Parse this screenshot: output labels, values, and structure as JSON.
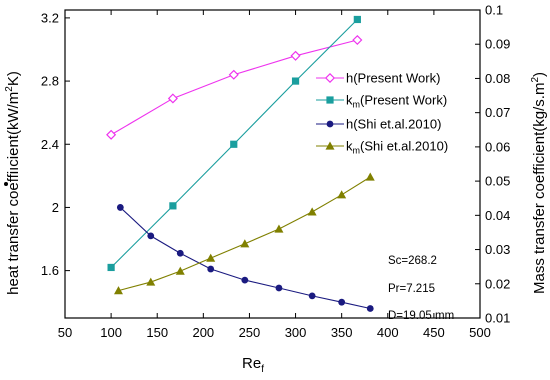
{
  "chart_data": {
    "type": "line",
    "x_axis": {
      "label_main": "Re",
      "label_sub": "f",
      "lim": [
        50,
        500
      ],
      "ticks": [
        50,
        100,
        150,
        200,
        250,
        300,
        350,
        400,
        450,
        500
      ]
    },
    "y_left": {
      "label_prefix": "heat transfer coeffi",
      "label_dotless_i": "ı",
      "label_suffix": "cient(kW/m",
      "label_sup": "2",
      "label_end": "K)",
      "lim": [
        1.3,
        3.25
      ],
      "ticks": [
        1.6,
        2,
        2.4,
        2.8,
        3.2
      ],
      "tick_labels": [
        "1.6",
        "2",
        "2.4",
        "2.8",
        "3.2"
      ]
    },
    "y_right": {
      "label_prefix": "Mass transfer coefficient(kg/s.m",
      "label_sup": "2",
      "label_end": ")",
      "lim": [
        0.01,
        0.1
      ],
      "ticks": [
        0.01,
        0.02,
        0.03,
        0.04,
        0.05,
        0.06,
        0.07,
        0.08,
        0.09,
        0.1
      ],
      "tick_labels": [
        "0.01",
        "0.02",
        "0.03",
        "0.04",
        "0.05",
        "0.06",
        "0.07",
        "0.08",
        "0.09",
        "0.1"
      ]
    },
    "series": [
      {
        "name": "h(Present Work)",
        "legend_main": "h(Present Work)",
        "legend_sub": "",
        "legend_rest": "",
        "axis": "left",
        "color": "#ee33ee",
        "marker": "diamond-open",
        "x": [
          100,
          167,
          233,
          300,
          367
        ],
        "y": [
          2.46,
          2.69,
          2.84,
          2.96,
          3.06
        ]
      },
      {
        "name": "km(Present Work)",
        "legend_main": "k",
        "legend_sub": "m",
        "legend_rest": "(Present Work)",
        "axis": "left",
        "color": "#1a9e9e",
        "marker": "square",
        "x": [
          100,
          167,
          233,
          300,
          367
        ],
        "y": [
          1.62,
          2.01,
          2.4,
          2.8,
          3.19
        ]
      },
      {
        "name": "h(Shi et.al.2010)",
        "legend_main": "h(Shi et.al.2010)",
        "legend_sub": "",
        "legend_rest": "",
        "axis": "left",
        "color": "#1a1a80",
        "marker": "circle",
        "x": [
          110,
          143,
          175,
          208,
          245,
          282,
          318,
          350,
          381
        ],
        "y": [
          2.0,
          1.82,
          1.71,
          1.61,
          1.54,
          1.49,
          1.44,
          1.4,
          1.36
        ]
      },
      {
        "name": "km(Shi et.al.2010)",
        "legend_main": "k",
        "legend_sub": "m",
        "legend_rest": "(Shi et.al.2010)",
        "axis": "right",
        "color": "#808000",
        "marker": "triangle",
        "x": [
          108,
          143,
          175,
          208,
          245,
          282,
          318,
          350,
          381
        ],
        "y": [
          0.018,
          0.0205,
          0.0237,
          0.0275,
          0.0317,
          0.036,
          0.041,
          0.046,
          0.0512
        ]
      }
    ],
    "annotations": [
      "Sc=268.2",
      "Pr=7.215",
      "D=19.05 mm"
    ],
    "grid": false,
    "legend_position": "top-right"
  }
}
